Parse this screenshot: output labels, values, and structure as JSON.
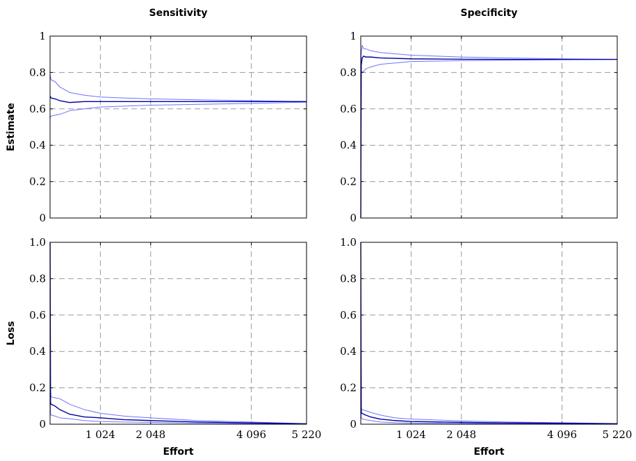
{
  "chart_data": [
    {
      "type": "line",
      "panel": "sensitivity-estimate",
      "title": "Sensitivity",
      "xlabel": "",
      "ylabel": "Estimate",
      "xlim": [
        0,
        5220
      ],
      "ylim": [
        0,
        1
      ],
      "xticks": [
        1024,
        2048,
        4096,
        5220
      ],
      "xtick_labels": [],
      "yticks": [
        0,
        0.2,
        0.4,
        0.6,
        0.8,
        1
      ],
      "ytick_labels": [
        "0",
        "0.2",
        "0.4",
        "0.6",
        "0.8",
        "1"
      ],
      "grid": true,
      "series": [
        {
          "role": "upper",
          "color": "#7070ff",
          "x": [
            1,
            20,
            100,
            200,
            400,
            700,
            1024,
            1500,
            2048,
            3000,
            4096,
            5220
          ],
          "y": [
            0.79,
            0.76,
            0.75,
            0.72,
            0.69,
            0.675,
            0.665,
            0.66,
            0.655,
            0.65,
            0.645,
            0.64
          ]
        },
        {
          "role": "estimate",
          "color": "#0000a0",
          "x": [
            1,
            20,
            100,
            200,
            400,
            700,
            1024,
            1500,
            2048,
            3000,
            4096,
            5220
          ],
          "y": [
            0.67,
            0.66,
            0.655,
            0.645,
            0.635,
            0.64,
            0.64,
            0.64,
            0.64,
            0.64,
            0.64,
            0.64
          ]
        },
        {
          "role": "lower",
          "color": "#7070ff",
          "x": [
            1,
            20,
            100,
            200,
            400,
            700,
            1024,
            1500,
            2048,
            3000,
            4096,
            5220
          ],
          "y": [
            0.55,
            0.56,
            0.565,
            0.57,
            0.59,
            0.6,
            0.61,
            0.615,
            0.62,
            0.625,
            0.63,
            0.637
          ]
        }
      ]
    },
    {
      "type": "line",
      "panel": "specificity-estimate",
      "title": "Specificity",
      "xlabel": "",
      "ylabel": "",
      "xlim": [
        0,
        5220
      ],
      "ylim": [
        0,
        1
      ],
      "xticks": [
        1024,
        2048,
        4096,
        5220
      ],
      "xtick_labels": [],
      "yticks": [
        0,
        0.2,
        0.4,
        0.6,
        0.8,
        1
      ],
      "ytick_labels": [
        "0",
        "0.2",
        "0.4",
        "0.6",
        "0.8",
        "1"
      ],
      "grid": true,
      "series": [
        {
          "role": "upper",
          "color": "#7070ff",
          "x": [
            1,
            10,
            30,
            60,
            100,
            200,
            400,
            1024,
            2048,
            3000,
            4096,
            5220
          ],
          "y": [
            0.0,
            0.9,
            0.95,
            0.93,
            0.93,
            0.92,
            0.91,
            0.895,
            0.885,
            0.88,
            0.875,
            0.872
          ]
        },
        {
          "role": "estimate",
          "color": "#0000a0",
          "x": [
            1,
            10,
            30,
            60,
            100,
            200,
            400,
            1024,
            2048,
            3000,
            4096,
            5220
          ],
          "y": [
            0.0,
            0.84,
            0.88,
            0.89,
            0.885,
            0.885,
            0.88,
            0.875,
            0.873,
            0.872,
            0.872,
            0.872
          ]
        },
        {
          "role": "lower",
          "color": "#7070ff",
          "x": [
            1,
            10,
            30,
            60,
            100,
            200,
            400,
            1024,
            2048,
            3000,
            4096,
            5220
          ],
          "y": [
            0.0,
            0.8,
            0.805,
            0.805,
            0.82,
            0.83,
            0.845,
            0.86,
            0.865,
            0.868,
            0.87,
            0.872
          ]
        }
      ]
    },
    {
      "type": "line",
      "panel": "sensitivity-loss",
      "title": "",
      "xlabel": "Effort",
      "ylabel": "Loss",
      "xlim": [
        0,
        5220
      ],
      "ylim": [
        0,
        1
      ],
      "xticks": [
        1024,
        2048,
        4096,
        5220
      ],
      "xtick_labels": [
        "1 024",
        "2 048",
        "4 096",
        "5 220"
      ],
      "yticks": [
        0,
        0.2,
        0.4,
        0.6,
        0.8,
        1
      ],
      "ytick_labels": [
        "0",
        "0.2",
        "0.4",
        "0.6",
        "0.8",
        "1.0"
      ],
      "grid": true,
      "series": [
        {
          "role": "upper",
          "color": "#7070ff",
          "x": [
            1,
            10,
            20,
            100,
            200,
            400,
            700,
            1024,
            1500,
            2048,
            3000,
            4096,
            5220
          ],
          "y": [
            1.0,
            0.2,
            0.15,
            0.145,
            0.14,
            0.11,
            0.08,
            0.06,
            0.045,
            0.035,
            0.02,
            0.012,
            0.003
          ]
        },
        {
          "role": "estimate",
          "color": "#0000a0",
          "x": [
            1,
            10,
            20,
            100,
            200,
            400,
            700,
            1024,
            1500,
            2048,
            3000,
            4096,
            5220
          ],
          "y": [
            1.0,
            0.12,
            0.11,
            0.1,
            0.08,
            0.055,
            0.04,
            0.035,
            0.025,
            0.02,
            0.012,
            0.007,
            0.002
          ]
        },
        {
          "role": "lower",
          "color": "#7070ff",
          "x": [
            1,
            10,
            20,
            100,
            200,
            400,
            700,
            1024,
            1500,
            2048,
            3000,
            4096,
            5220
          ],
          "y": [
            0.6,
            0.06,
            0.05,
            0.045,
            0.035,
            0.03,
            0.02,
            0.015,
            0.012,
            0.01,
            0.006,
            0.004,
            0.001
          ]
        }
      ]
    },
    {
      "type": "line",
      "panel": "specificity-loss",
      "title": "",
      "xlabel": "Effort",
      "ylabel": "",
      "xlim": [
        0,
        5220
      ],
      "ylim": [
        0,
        1
      ],
      "xticks": [
        1024,
        2048,
        4096,
        5220
      ],
      "xtick_labels": [
        "1 024",
        "2 048",
        "4 096",
        "5 220"
      ],
      "yticks": [
        0,
        0.2,
        0.4,
        0.6,
        0.8,
        1
      ],
      "ytick_labels": [
        "0",
        "0.2",
        "0.4",
        "0.6",
        "0.8",
        "1.0"
      ],
      "grid": true,
      "series": [
        {
          "role": "upper",
          "color": "#7070ff",
          "x": [
            1,
            10,
            20,
            100,
            200,
            400,
            700,
            1024,
            2048,
            3000,
            4096,
            5220
          ],
          "y": [
            1.0,
            0.1,
            0.08,
            0.075,
            0.065,
            0.05,
            0.035,
            0.028,
            0.018,
            0.012,
            0.008,
            0.004
          ]
        },
        {
          "role": "estimate",
          "color": "#0000a0",
          "x": [
            1,
            10,
            20,
            100,
            200,
            400,
            700,
            1024,
            2048,
            3000,
            4096,
            5220
          ],
          "y": [
            1.0,
            0.07,
            0.06,
            0.05,
            0.04,
            0.028,
            0.02,
            0.015,
            0.01,
            0.007,
            0.005,
            0.002
          ]
        },
        {
          "role": "lower",
          "color": "#7070ff",
          "x": [
            1,
            10,
            20,
            100,
            200,
            400,
            700,
            1024,
            2048,
            3000,
            4096,
            5220
          ],
          "y": [
            0.5,
            0.04,
            0.03,
            0.025,
            0.02,
            0.012,
            0.008,
            0.006,
            0.004,
            0.003,
            0.002,
            0.001
          ]
        }
      ]
    }
  ]
}
